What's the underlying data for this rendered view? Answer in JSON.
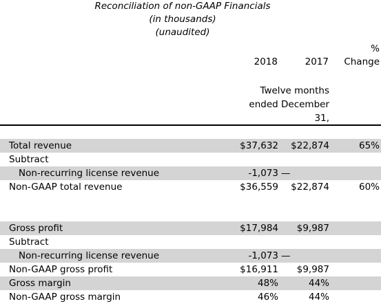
{
  "header": {
    "title": "Reconciliation of non-GAAP Financials",
    "subtitle": "(in thousands)",
    "note": "(unaudited)"
  },
  "table": {
    "columns": [
      "2018",
      "2017",
      "% Change"
    ],
    "period": "Twelve months ended December 31,",
    "rows": [
      {
        "label": "Total revenue",
        "y2018": "$37,632",
        "y2017": "$22,874",
        "change": "65%",
        "shaded": true
      },
      {
        "label": "Subtract",
        "shaded": false
      },
      {
        "label": "Non-recurring license revenue",
        "y2018": "-1,073",
        "y2017": "—",
        "shaded": true,
        "indent": true
      },
      {
        "label": "Non-GAAP total revenue",
        "y2018": "$36,559",
        "y2017": "$22,874",
        "change": "60%",
        "shaded": false
      },
      {
        "spacer": true
      },
      {
        "label": "Gross profit",
        "y2018": "$17,984",
        "y2017": "$9,987",
        "shaded": true
      },
      {
        "label": "Subtract",
        "shaded": false
      },
      {
        "label": "Non-recurring license revenue",
        "y2018": "-1,073",
        "y2017": "—",
        "shaded": true,
        "indent": true
      },
      {
        "label": "Non-GAAP gross profit",
        "y2018": "$16,911",
        "y2017": "$9,987",
        "shaded": false
      },
      {
        "label": "Gross margin",
        "y2018": "48%",
        "y2017": "44%",
        "shaded": true
      },
      {
        "label": "Non-GAAP gross margin",
        "y2018": "46%",
        "y2017": "44%",
        "shaded": false
      }
    ]
  }
}
